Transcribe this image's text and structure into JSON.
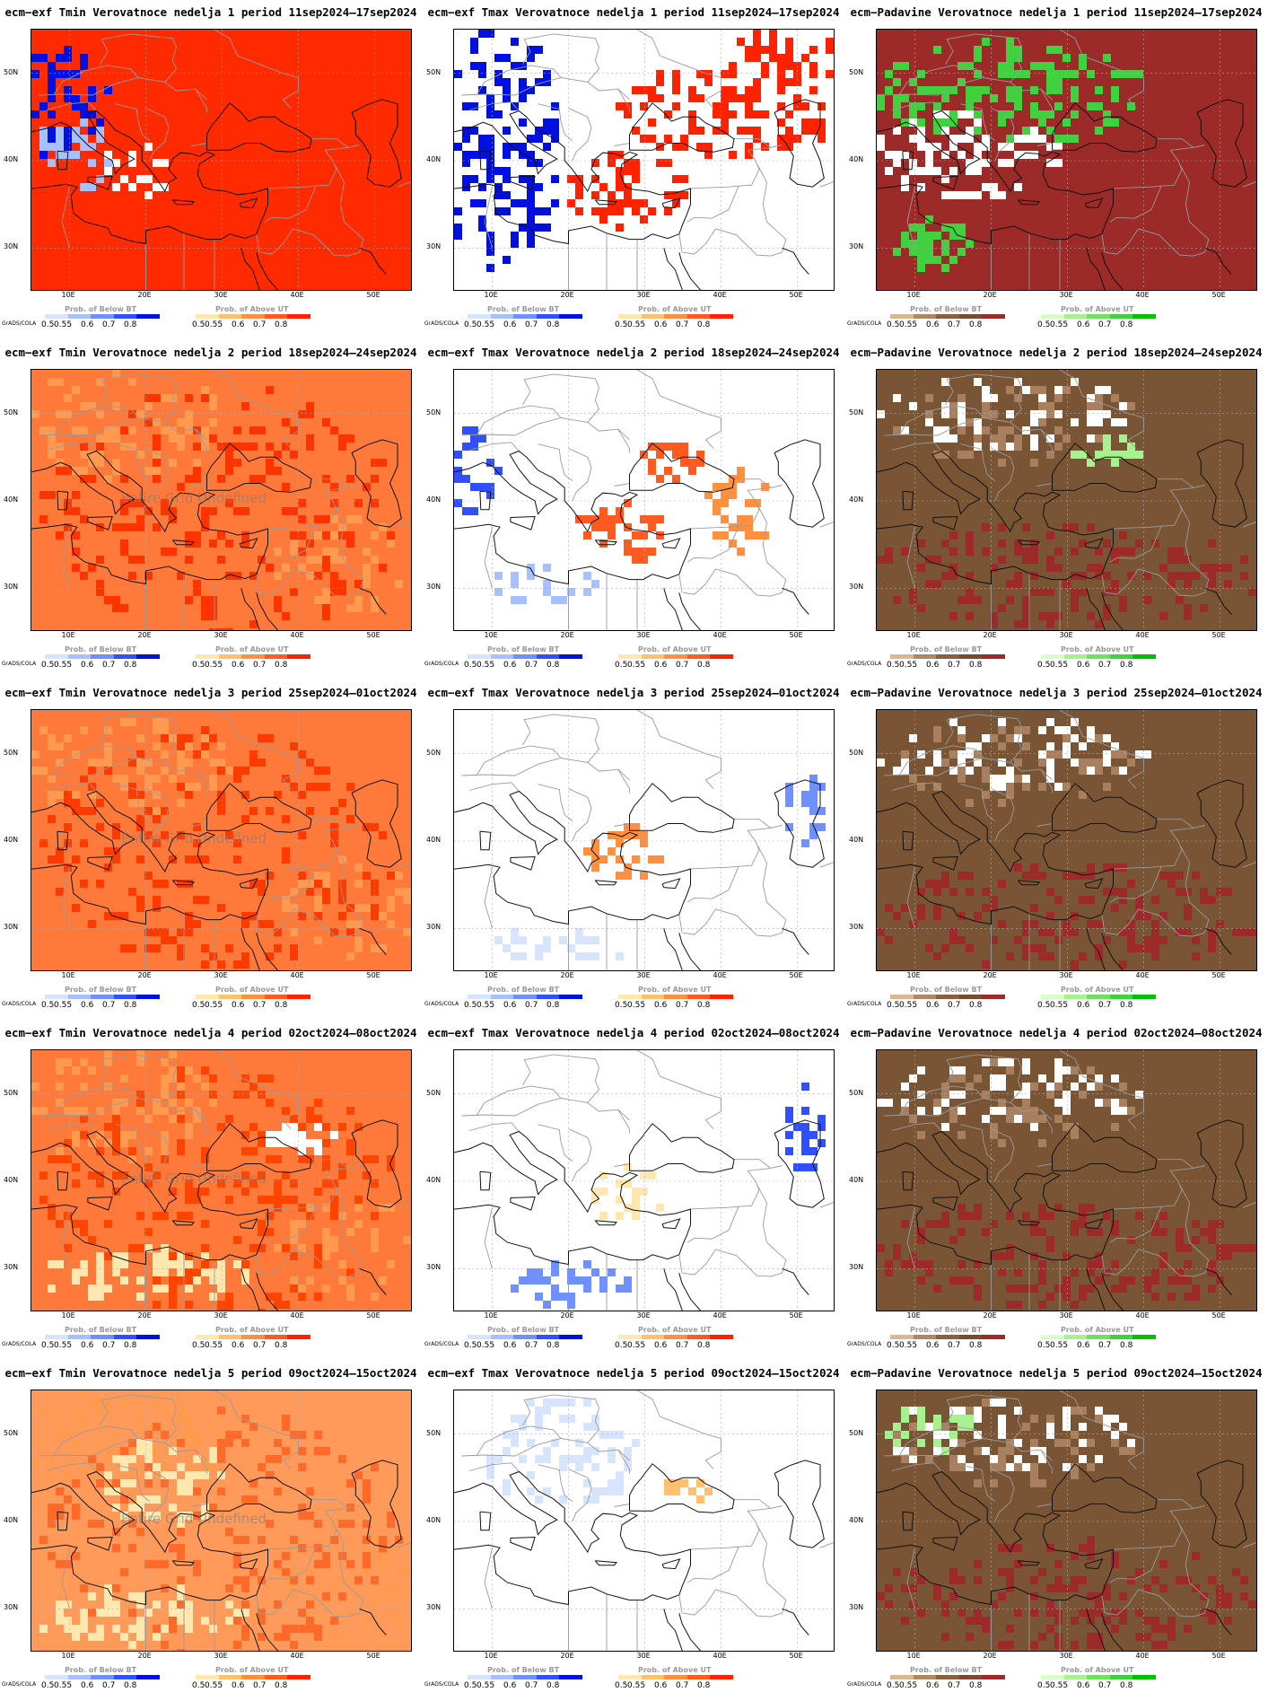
{
  "rows": [
    {
      "week": "1",
      "period": "11sep2024–17sep2024"
    },
    {
      "week": "2",
      "period": "18sep2024–24sep2024"
    },
    {
      "week": "3",
      "period": "25sep2024–01oct2024"
    },
    {
      "week": "4",
      "period": "02oct2024–08oct2024"
    },
    {
      "week": "5",
      "period": "09oct2024–15oct2024"
    }
  ],
  "panels": [
    {
      "title": "ecm−exf Tmin Verovatnoce nedelja 1 period 11sep2024–17sep2024",
      "variable": "tmin",
      "undefined_text": "",
      "fill": "#ff2a00",
      "base": "#ff2a00",
      "blue": "high",
      "red": "high"
    },
    {
      "title": "ecm−exf Tmax Verovatnoce nedelja 1 period 11sep2024–17sep2024",
      "variable": "tmax",
      "undefined_text": "",
      "fill": "#ffffff",
      "base": "#ffffff",
      "blue": "high",
      "red": "high"
    },
    {
      "title": "ecm−Padavine Verovatnoce nedelja 1 period 11sep2024–17sep2024",
      "variable": "precip",
      "undefined_text": "",
      "fill": "#9b2a28",
      "base": "#9b2a28",
      "green": "high"
    },
    {
      "title": "ecm−exf Tmin Verovatnoce nedelja 2 period 18sep2024–24sep2024",
      "variable": "tmin",
      "undefined_text": "Entire Grid Undefined",
      "fill": "#ff3300",
      "base": "#ff7a3a"
    },
    {
      "title": "ecm−exf Tmax Verovatnoce nedelja 2 period 18sep2024–24sep2024",
      "variable": "tmax",
      "undefined_text": "",
      "fill": "#ffffff",
      "base": "#ffffff",
      "blue": "mid",
      "red": "mid"
    },
    {
      "title": "ecm−Padavine Verovatnoce nedelja 2 period 18sep2024–24sep2024",
      "variable": "precip",
      "undefined_text": "",
      "fill": "#9b2a28",
      "base": "#7a5535",
      "green": "low"
    },
    {
      "title": "ecm−exf Tmin Verovatnoce nedelja 3 period 25sep2024–01oct2024",
      "variable": "tmin",
      "undefined_text": "Entire Grid Undefined",
      "fill": "#ff3a00",
      "base": "#ff7a3a"
    },
    {
      "title": "ecm−exf Tmax Verovatnoce nedelja 3 period 25sep2024–01oct2024",
      "variable": "tmax",
      "undefined_text": "",
      "fill": "#ffffff",
      "base": "#ffffff",
      "blue": "low",
      "red": "low"
    },
    {
      "title": "ecm−Padavine Verovatnoce nedelja 3 period 25sep2024–01oct2024",
      "variable": "precip",
      "undefined_text": "",
      "fill": "#9b2a28",
      "base": "#7a5535",
      "green": "low"
    },
    {
      "title": "ecm−exf Tmin Verovatnoce nedelja 4 period 02oct2024–08oct2024",
      "variable": "tmin",
      "undefined_text": "Entire Grid Undefined",
      "fill": "#ff4400",
      "base": "#ff7a3a"
    },
    {
      "title": "ecm−exf Tmax Verovatnoce nedelja 4 period 02oct2024–08oct2024",
      "variable": "tmax",
      "undefined_text": "",
      "fill": "#ffffff",
      "base": "#ffffff",
      "blue": "low",
      "red": "low"
    },
    {
      "title": "ecm−Padavine Verovatnoce nedelja 4 period 02oct2024–08oct2024",
      "variable": "precip",
      "undefined_text": "",
      "fill": "#9b2a28",
      "base": "#7a5535",
      "green": "low"
    },
    {
      "title": "ecm−exf Tmin Verovatnoce nedelja 5 period 09oct2024–15oct2024",
      "variable": "tmin",
      "undefined_text": "Entire Grid Undefined",
      "fill": "#ff6a2a",
      "base": "#ff9a5a"
    },
    {
      "title": "ecm−exf Tmax Verovatnoce nedelja 5 period 09oct2024–15oct2024",
      "variable": "tmax",
      "undefined_text": "",
      "fill": "#ffffff",
      "base": "#ffffff",
      "blue": "low",
      "red": "low"
    },
    {
      "title": "ecm−Padavine Verovatnoce nedelja 5 period 09oct2024–15oct2024",
      "variable": "precip",
      "undefined_text": "",
      "fill": "#9b2a28",
      "base": "#7a5535",
      "green": "low"
    }
  ],
  "axes": {
    "lat_labels": [
      "50N",
      "40N",
      "30N"
    ],
    "lon_labels": [
      "10E",
      "20E",
      "30E",
      "40E",
      "50E"
    ],
    "lat_range": [
      25,
      55
    ],
    "lon_range": [
      5,
      55
    ]
  },
  "legends": {
    "below_title": "Prob. of Below BT",
    "above_title": "Prob. of Above UT",
    "ticks": [
      "0.5",
      "0.55",
      "0.6",
      "0.7",
      "0.8"
    ],
    "left_prefix": "GrADS/COLA",
    "temp_below_colors": [
      "#d8e4ff",
      "#a8c0ff",
      "#7090ff",
      "#3050ff",
      "#0010e0"
    ],
    "temp_above_colors": [
      "#ffe8b0",
      "#ffc070",
      "#ff9040",
      "#ff5a20",
      "#ff2200"
    ],
    "precip_below_colors": [
      "#d8b890",
      "#b08860",
      "#8a6040",
      "#7a4a30",
      "#9b2a28"
    ],
    "precip_above_colors": [
      "#d8ffc8",
      "#a8f090",
      "#70e060",
      "#40d040",
      "#00c000"
    ]
  }
}
